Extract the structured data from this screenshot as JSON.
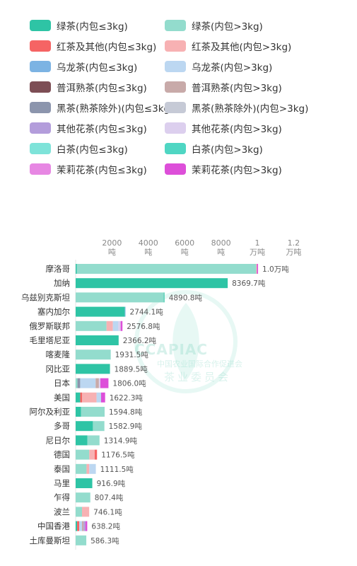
{
  "legend": [
    {
      "name": "绿茶(内包≤3kg)",
      "color": "#2ec4a5"
    },
    {
      "name": "绿茶(内包>3kg)",
      "color": "#93dccd"
    },
    {
      "name": "红茶及其他(内包≤3kg)",
      "color": "#f56464"
    },
    {
      "name": "红茶及其他(内包>3kg)",
      "color": "#f7b1b3"
    },
    {
      "name": "乌龙茶(内包≤3kg)",
      "color": "#7cb3e3"
    },
    {
      "name": "乌龙茶(内包>3kg)",
      "color": "#bcd7f1"
    },
    {
      "name": "普洱熟茶(内包≤3kg)",
      "color": "#7d4e55"
    },
    {
      "name": "普洱熟茶(内包>3kg)",
      "color": "#c8aaa9"
    },
    {
      "name": "黑茶(熟茶除外)(内包≤3kg)",
      "color": "#8c95ad"
    },
    {
      "name": "黑茶(熟茶除外)(内包>3kg)",
      "color": "#c6cad6"
    },
    {
      "name": "其他花茶(内包≤3kg)",
      "color": "#b39ddb"
    },
    {
      "name": "其他花茶(内包>3kg)",
      "color": "#dccfee"
    },
    {
      "name": "白茶(内包≤3kg)",
      "color": "#7ee3d9"
    },
    {
      "name": "白茶(内包>3kg)",
      "color": "#4fd6c3"
    },
    {
      "name": "茉莉花茶(内包≤3kg)",
      "color": "#e787e3"
    },
    {
      "name": "茉莉花茶(内包>3kg)",
      "color": "#dd4fd9"
    }
  ],
  "watermark": {
    "text1": "CCAPIAC",
    "text2": "中国农业国际合作促进会",
    "text3": "茶业委员会"
  },
  "chart_data": {
    "type": "bar",
    "orientation": "horizontal",
    "stacked": true,
    "xlim": [
      0,
      12000
    ],
    "ticks": [
      {
        "value": 2000,
        "lines": [
          "2000",
          "吨"
        ]
      },
      {
        "value": 4000,
        "lines": [
          "4000",
          "吨"
        ]
      },
      {
        "value": 6000,
        "lines": [
          "6000",
          "吨"
        ]
      },
      {
        "value": 8000,
        "lines": [
          "8000",
          "吨"
        ]
      },
      {
        "value": 10000,
        "lines": [
          "1",
          "万吨"
        ]
      },
      {
        "value": 12000,
        "lines": [
          "1.2",
          "万吨"
        ]
      }
    ],
    "categories": [
      "摩洛哥",
      "加纳",
      "乌兹别克斯坦",
      "塞内加尔",
      "俄罗斯联邦",
      "毛里塔尼亚",
      "喀麦隆",
      "冈比亚",
      "日本",
      "美国",
      "阿尔及利亚",
      "多哥",
      "尼日尔",
      "德国",
      "泰国",
      "马里",
      "乍得",
      "波兰",
      "中国香港",
      "土库曼斯坦"
    ],
    "totals": [
      "1.0万吨",
      "8369.7吨",
      "4890.8吨",
      "2744.1吨",
      "2576.8吨",
      "2366.2吨",
      "1931.5吨",
      "1889.5吨",
      "1806.0吨",
      "1622.3吨",
      "1594.8吨",
      "1582.9吨",
      "1314.9吨",
      "1176.5吨",
      "1111.5吨",
      "916.9吨",
      "807.4吨",
      "746.1吨",
      "638.2吨",
      "586.3吨"
    ],
    "segments": [
      [
        [
          "绿茶(内包≤3kg)",
          60
        ],
        [
          "绿茶(内包>3kg)",
          9880
        ],
        [
          "红茶及其他(内包>3kg)",
          40
        ],
        [
          "茉莉花茶(内包>3kg)",
          60
        ]
      ],
      [
        [
          "绿茶(内包≤3kg)",
          8369.7
        ]
      ],
      [
        [
          "绿茶(内包>3kg)",
          4850
        ],
        [
          "绿茶(内包≤3kg)",
          40.8
        ]
      ],
      [
        [
          "绿茶(内包≤3kg)",
          2710
        ],
        [
          "乌龙茶(内包≤3kg)",
          34.1
        ]
      ],
      [
        [
          "绿茶(内包>3kg)",
          1700
        ],
        [
          "红茶及其他(内包>3kg)",
          350
        ],
        [
          "乌龙茶(内包>3kg)",
          300
        ],
        [
          "其他花茶(内包>3kg)",
          126.8
        ],
        [
          "茉莉花茶(内包>3kg)",
          100
        ]
      ],
      [
        [
          "绿茶(内包≤3kg)",
          2366.2
        ]
      ],
      [
        [
          "绿茶(内包>3kg)",
          1931.5
        ]
      ],
      [
        [
          "绿茶(内包≤3kg)",
          1889.5
        ]
      ],
      [
        [
          "绿茶(内包>3kg)",
          100
        ],
        [
          "黑茶(熟茶除外)(内包≤3kg)",
          150
        ],
        [
          "乌龙茶(内包>3kg)",
          850
        ],
        [
          "普洱熟茶(内包>3kg)",
          180
        ],
        [
          "其他花茶(内包>3kg)",
          80
        ],
        [
          "茉莉花茶(内包>3kg)",
          446
        ]
      ],
      [
        [
          "绿茶(内包≤3kg)",
          250
        ],
        [
          "红茶及其他(内包≤3kg)",
          100
        ],
        [
          "红茶及其他(内包>3kg)",
          800
        ],
        [
          "乌龙茶(内包>3kg)",
          250
        ],
        [
          "茉莉花茶(内包>3kg)",
          222.3
        ]
      ],
      [
        [
          "绿茶(内包≤3kg)",
          300
        ],
        [
          "绿茶(内包>3kg)",
          1294.8
        ]
      ],
      [
        [
          "绿茶(内包≤3kg)",
          950
        ],
        [
          "绿茶(内包>3kg)",
          632.9
        ]
      ],
      [
        [
          "绿茶(内包≤3kg)",
          650
        ],
        [
          "绿茶(内包>3kg)",
          664.9
        ]
      ],
      [
        [
          "绿茶(内包>3kg)",
          750
        ],
        [
          "红茶及其他(内包>3kg)",
          300
        ],
        [
          "红茶及其他(内包≤3kg)",
          126.5
        ]
      ],
      [
        [
          "绿茶(内包>3kg)",
          600
        ],
        [
          "红茶及其他(内包>3kg)",
          150
        ],
        [
          "乌龙茶(内包>3kg)",
          361.5
        ]
      ],
      [
        [
          "绿茶(内包≤3kg)",
          916.9
        ]
      ],
      [
        [
          "绿茶(内包>3kg)",
          807.4
        ]
      ],
      [
        [
          "绿茶(内包>3kg)",
          350
        ],
        [
          "红茶及其他(内包>3kg)",
          396.1
        ]
      ],
      [
        [
          "绿茶(内包≤3kg)",
          80
        ],
        [
          "红茶及其他(内包≤3kg)",
          120
        ],
        [
          "乌龙茶(内包>3kg)",
          150
        ],
        [
          "普洱熟茶(内包>3kg)",
          90
        ],
        [
          "其他花茶(内包≤3kg)",
          100
        ],
        [
          "茉莉花茶(内包>3kg)",
          98.2
        ]
      ],
      [
        [
          "绿茶(内包>3kg)",
          586.3
        ]
      ]
    ]
  }
}
